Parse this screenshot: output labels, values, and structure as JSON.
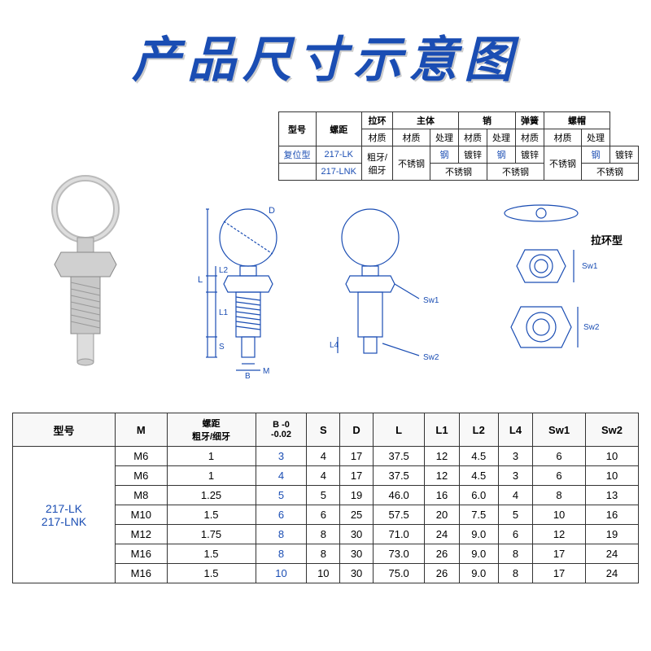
{
  "title": "产品尺寸示意图",
  "material_table": {
    "headers": {
      "model": "型号",
      "pitch": "螺距",
      "ring": "拉环",
      "body": "主体",
      "pin": "销",
      "spring": "弹簧",
      "cap": "螺帽",
      "reset": "复位型",
      "material": "材质",
      "treatment": "处理"
    },
    "rows": [
      {
        "model": "217-LK",
        "pitch": "粗牙/",
        "ring_mat": "不锈钢",
        "body_mat": "钢",
        "body_treat": "镀锌",
        "pin_mat": "钢",
        "pin_treat": "镀锌",
        "spring_mat": "不锈钢",
        "cap_mat": "钢",
        "cap_treat": "镀锌"
      },
      {
        "model": "217-LNK",
        "pitch": "细牙",
        "ring_mat": "",
        "body_mat": "不锈钢",
        "body_treat": "",
        "pin_mat": "不锈钢",
        "pin_treat": "",
        "spring_mat": "",
        "cap_mat": "不锈钢",
        "cap_treat": ""
      }
    ]
  },
  "type_label": "拉环型",
  "diagram_labels": {
    "D": "D",
    "L": "L",
    "L1": "L1",
    "L2": "L2",
    "L4": "L4",
    "S": "S",
    "B": "B",
    "M": "M",
    "Sw1": "Sw1",
    "Sw2": "Sw2"
  },
  "dim_table": {
    "headers": [
      "型号",
      "M",
      "螺距\n粗牙/细牙",
      "B -0\n  -0.02",
      "S",
      "D",
      "L",
      "L1",
      "L2",
      "L4",
      "Sw1",
      "Sw2"
    ],
    "model_label": "217-LK\n217-LNK",
    "rows": [
      [
        "M6",
        "1",
        "3",
        "4",
        "17",
        "37.5",
        "12",
        "4.5",
        "3",
        "6",
        "10"
      ],
      [
        "M6",
        "1",
        "4",
        "4",
        "17",
        "37.5",
        "12",
        "4.5",
        "3",
        "6",
        "10"
      ],
      [
        "M8",
        "1.25",
        "5",
        "5",
        "19",
        "46.0",
        "16",
        "6.0",
        "4",
        "8",
        "13"
      ],
      [
        "M10",
        "1.5",
        "6",
        "6",
        "25",
        "57.5",
        "20",
        "7.5",
        "5",
        "10",
        "16"
      ],
      [
        "M12",
        "1.75",
        "8",
        "8",
        "30",
        "71.0",
        "24",
        "9.0",
        "6",
        "12",
        "19"
      ],
      [
        "M16",
        "1.5",
        "8",
        "8",
        "30",
        "73.0",
        "26",
        "9.0",
        "8",
        "17",
        "24"
      ],
      [
        "M16",
        "1.5",
        "10",
        "10",
        "30",
        "75.0",
        "26",
        "9.0",
        "8",
        "17",
        "24"
      ]
    ]
  },
  "colors": {
    "primary": "#1a4db3",
    "border": "#333333",
    "bg": "#ffffff"
  }
}
